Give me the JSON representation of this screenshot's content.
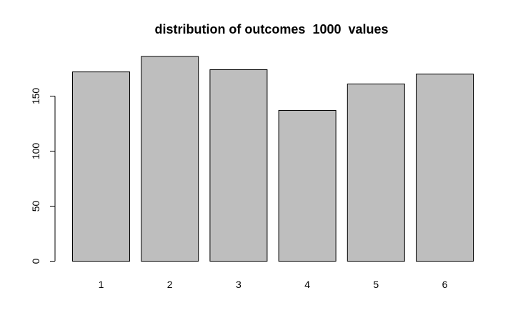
{
  "chart_data": {
    "type": "bar",
    "title": "distribution of outcomes  1000  values",
    "xlabel": "",
    "ylabel": "",
    "categories": [
      "1",
      "2",
      "3",
      "4",
      "5",
      "6"
    ],
    "values": [
      172,
      186,
      174,
      137,
      161,
      170
    ],
    "ylim": [
      0,
      186
    ],
    "yticks": [
      0,
      50,
      100,
      150
    ],
    "ytick_labels": [
      "0",
      "50",
      "100",
      "150"
    ],
    "bar_color": "#bebebe",
    "border_color": "#000000",
    "grid": false
  }
}
